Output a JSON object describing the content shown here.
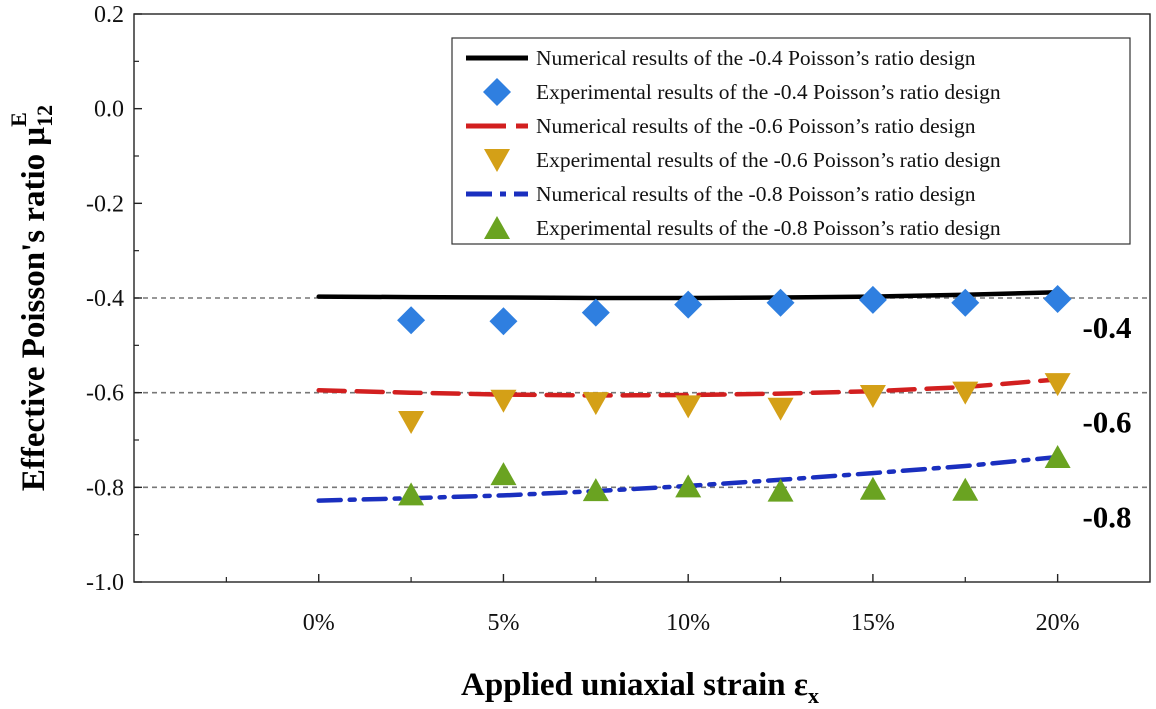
{
  "chart_data": {
    "type": "line",
    "title": "",
    "xlabel": {
      "main": "Applied uniaxial strain ε",
      "sub": "x"
    },
    "ylabel": {
      "main": "Effective Poisson's ratio μ",
      "sub": "12",
      "sup": "E"
    },
    "xlim": [
      -5,
      22.5
    ],
    "ylim": [
      -1.0,
      0.2
    ],
    "x_ticks": [
      0,
      5,
      10,
      15,
      20
    ],
    "x_tick_labels": [
      "0%",
      "5%",
      "10%",
      "15%",
      "20%"
    ],
    "y_ticks": [
      0.2,
      0.0,
      -0.2,
      -0.4,
      -0.6,
      -0.8,
      -1.0
    ],
    "y_tick_labels": [
      "0.2",
      "0.0",
      "-0.2",
      "-0.4",
      "-0.6",
      "-0.8",
      "-1.0"
    ],
    "legend_position": "top-right",
    "series": [
      {
        "name": "Numerical results of the -0.4 Poisson’s ratio design",
        "kind": "line",
        "style": "solid",
        "color": "#000000",
        "x": [
          0,
          2.5,
          5,
          7.5,
          10,
          12.5,
          15,
          17.5,
          20
        ],
        "y": [
          -0.397,
          -0.398,
          -0.399,
          -0.4,
          -0.4,
          -0.399,
          -0.397,
          -0.393,
          -0.388
        ]
      },
      {
        "name": "Experimental results of the -0.4 Poisson’s ratio design",
        "kind": "marker",
        "marker": "diamond",
        "color": "#2f7fe0",
        "x": [
          2.5,
          5,
          7.5,
          10,
          12.5,
          15,
          17.5,
          20
        ],
        "y": [
          -0.447,
          -0.449,
          -0.431,
          -0.414,
          -0.41,
          -0.404,
          -0.41,
          -0.402
        ]
      },
      {
        "name": "Numerical results of the -0.6 Poisson’s ratio design",
        "kind": "line",
        "style": "dashed",
        "color": "#d21f1f",
        "x": [
          0,
          2.5,
          5,
          7.5,
          10,
          12.5,
          15,
          17.5,
          20
        ],
        "y": [
          -0.595,
          -0.6,
          -0.604,
          -0.606,
          -0.605,
          -0.602,
          -0.597,
          -0.588,
          -0.572
        ]
      },
      {
        "name": "Experimental results of the -0.6 Poisson’s ratio design",
        "kind": "marker",
        "marker": "triangle-down",
        "color": "#d4a017",
        "x": [
          2.5,
          5,
          7.5,
          10,
          12.5,
          15,
          17.5,
          20
        ],
        "y": [
          -0.662,
          -0.617,
          -0.622,
          -0.629,
          -0.634,
          -0.607,
          -0.6,
          -0.582
        ]
      },
      {
        "name": "Numerical results of the -0.8 Poisson’s ratio design",
        "kind": "line",
        "style": "dash-dot",
        "color": "#1a2fbf",
        "x": [
          0,
          2.5,
          5,
          7.5,
          10,
          12.5,
          15,
          17.5,
          20
        ],
        "y": [
          -0.828,
          -0.823,
          -0.817,
          -0.808,
          -0.797,
          -0.784,
          -0.77,
          -0.755,
          -0.736
        ]
      },
      {
        "name": "Experimental results of the -0.8 Poisson’s ratio design",
        "kind": "marker",
        "marker": "triangle-up",
        "color": "#6aa321",
        "x": [
          2.5,
          5,
          7.5,
          10,
          12.5,
          15,
          17.5,
          20
        ],
        "y": [
          -0.815,
          -0.772,
          -0.806,
          -0.798,
          -0.807,
          -0.803,
          -0.805,
          -0.736
        ]
      }
    ],
    "reference_lines": [
      {
        "y": -0.4,
        "label": "-0.4"
      },
      {
        "y": -0.6,
        "label": "-0.6"
      },
      {
        "y": -0.8,
        "label": "-0.8"
      }
    ]
  }
}
